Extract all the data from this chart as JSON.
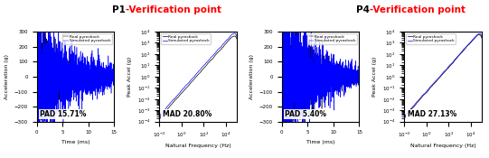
{
  "title_p1_bold": "P1",
  "title_p4_bold": "P4",
  "title_suffix": "-Verification point",
  "pad_p1": "PAD 15.71%",
  "mad_p1": "MAD 20.80%",
  "pad_p4": "PAD 5.40%",
  "mad_p4": "MAD 27.13%",
  "legend_real": "Real pyroshock",
  "legend_sim": "Simulated pyroshock",
  "color_real": "black",
  "color_sim": "blue",
  "time_xlabel": "Time (ms)",
  "time_ylabel": "Acceleration (g)",
  "freq_xlabel": "Natural Frequency (Hz)",
  "freq_ylabel": "Peak Accel (g)",
  "time_xlim": [
    0,
    15
  ],
  "time_ylim_p1": [
    -300,
    300
  ],
  "time_ylim_p4": [
    -300,
    300
  ],
  "freq_xlim": [
    0.01,
    100000
  ],
  "freq_ylim": [
    0.0001,
    10000
  ],
  "background_color": "white"
}
